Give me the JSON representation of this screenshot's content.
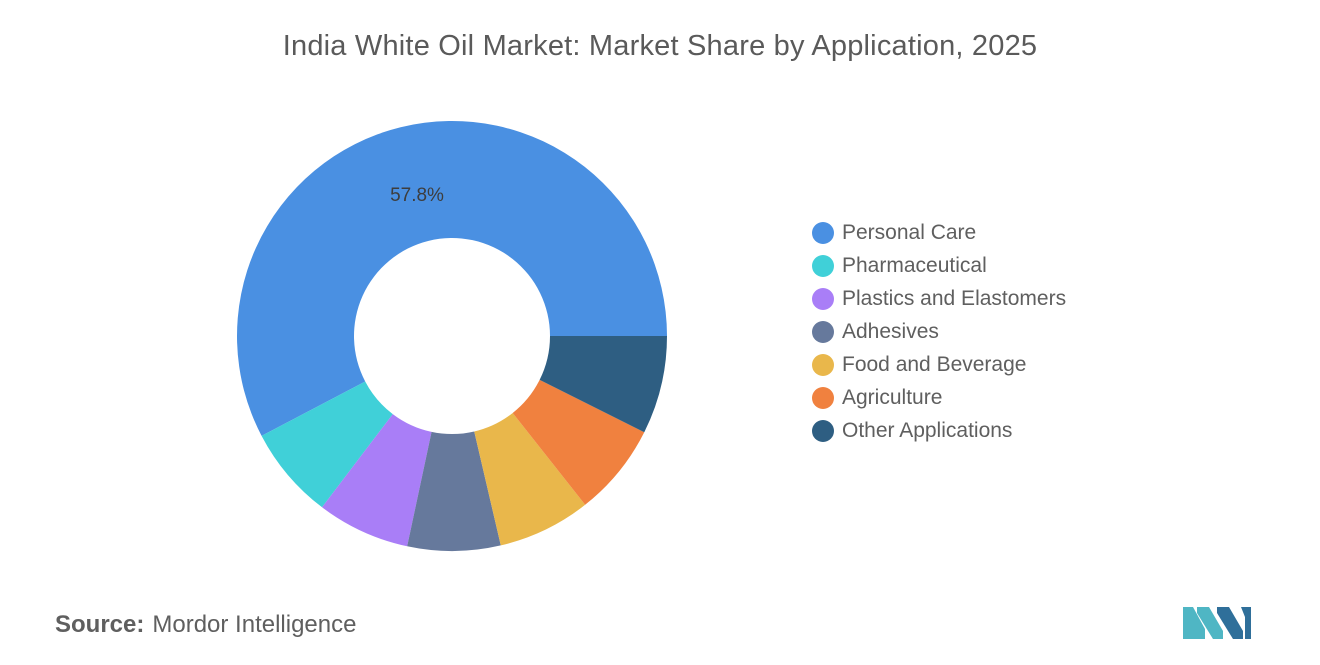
{
  "chart_data": {
    "type": "pie",
    "title": "India White Oil Market: Market Share by Application, 2025",
    "categories": [
      "Personal Care",
      "Pharmaceutical",
      "Plastics and Elastomers",
      "Adhesives",
      "Food and Beverage",
      "Agriculture",
      "Other Applications"
    ],
    "values": [
      57.8,
      7.0,
      7.0,
      7.0,
      7.0,
      7.0,
      7.4
    ],
    "data_labels": [
      "57.8%",
      "",
      "",
      "",
      "",
      "",
      ""
    ],
    "colors": [
      "#4a90e2",
      "#40d0d8",
      "#a97ef7",
      "#66799c",
      "#e9b74b",
      "#f0813f",
      "#2e5e82"
    ],
    "donut": true,
    "legend_position": "right"
  },
  "legend": {
    "items": [
      {
        "label": "Personal Care",
        "color": "#4a90e2"
      },
      {
        "label": "Pharmaceutical",
        "color": "#40d0d8"
      },
      {
        "label": "Plastics and Elastomers",
        "color": "#a97ef7"
      },
      {
        "label": "Adhesives",
        "color": "#66799c"
      },
      {
        "label": "Food and Beverage",
        "color": "#e9b74b"
      },
      {
        "label": "Agriculture",
        "color": "#f0813f"
      },
      {
        "label": "Other Applications",
        "color": "#2e5e82"
      }
    ]
  },
  "source": {
    "label": "Source:",
    "text": "Mordor Intelligence"
  },
  "logo": {
    "icon": "mordor-intelligence-logo-icon",
    "colors": [
      "#4fb6c4",
      "#2f6f9a"
    ]
  }
}
